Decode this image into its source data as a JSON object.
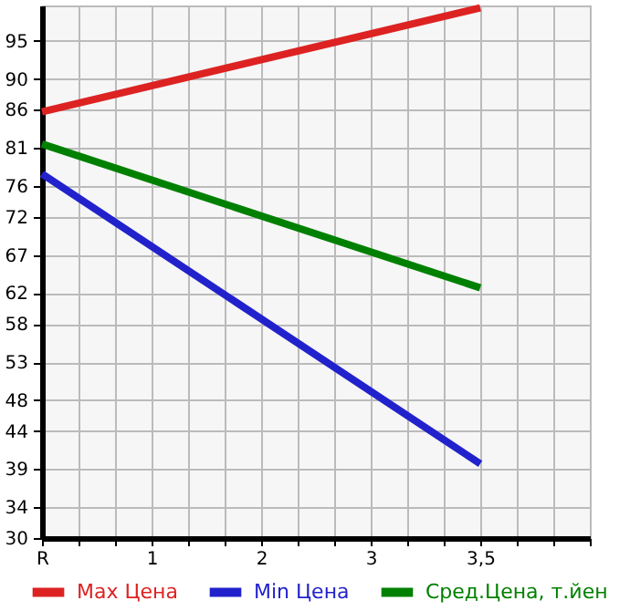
{
  "chart_data": {
    "type": "line",
    "categories": [
      "R",
      "1",
      "2",
      "3",
      "3,5",
      null
    ],
    "series": [
      {
        "name": "Max Цена",
        "color": "#dd2222",
        "values": [
          85.7,
          null,
          null,
          null,
          99.3,
          null
        ]
      },
      {
        "name": "Min Цена",
        "color": "#2222cc",
        "values": [
          77.6,
          null,
          null,
          null,
          39.7,
          null
        ]
      },
      {
        "name": "Сред.Цена, т.йен",
        "color": "#008000",
        "values": [
          81.5,
          null,
          null,
          null,
          62.7,
          null
        ]
      }
    ],
    "ylim": [
      30,
      99.6
    ],
    "yticks": [
      30,
      34,
      39,
      44,
      48,
      53,
      58,
      62,
      67,
      72,
      76,
      81,
      86,
      90,
      95
    ],
    "grid": true,
    "legend": "bottom",
    "line_style": "solid",
    "marker": "none"
  }
}
